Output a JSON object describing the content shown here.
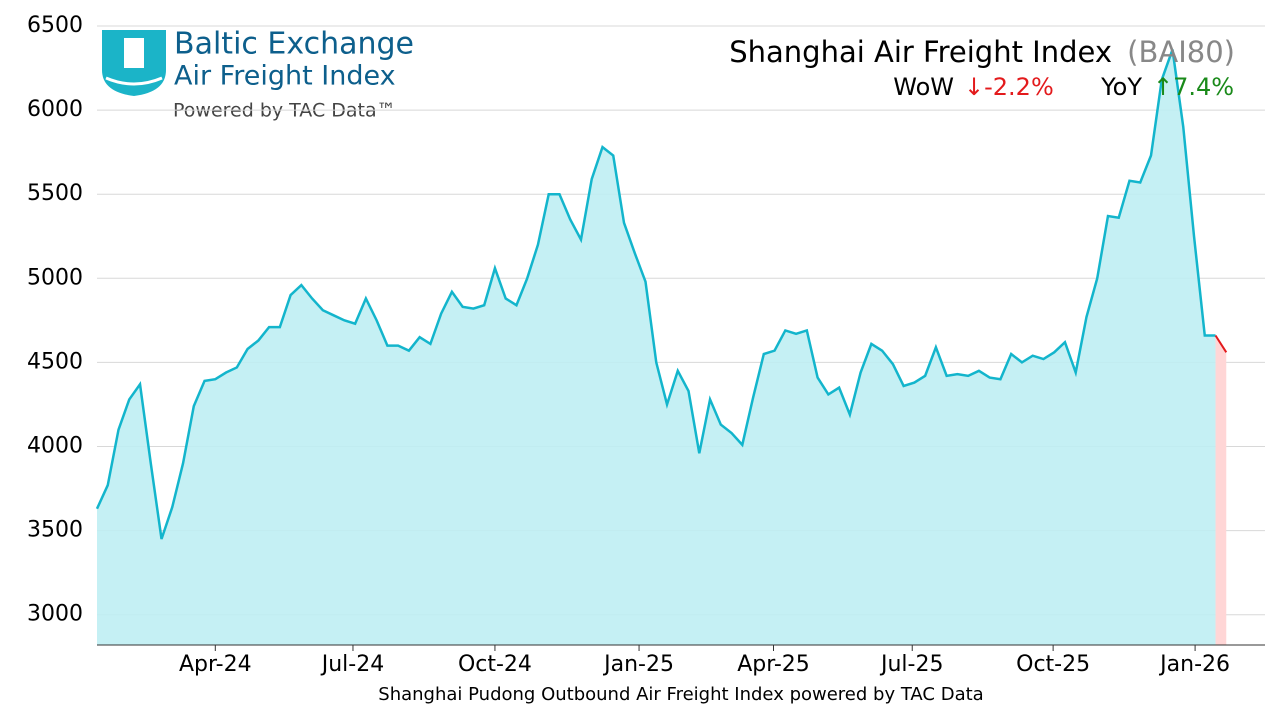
{
  "chart_data": {
    "type": "line",
    "title": "Shanghai Air Freight Index",
    "title_code": "(BAI80)",
    "wow_label": "WoW",
    "wow_value": "↓-2.2%",
    "yoy_label": "YoY",
    "yoy_value": "↑7.4%",
    "logo": {
      "name": "Baltic Exchange",
      "subname": "Air Freight Index",
      "powered": "Powered by TAC Data™"
    },
    "x_label": "Shanghai Pudong Outbound Air Freight Index powered by TAC Data",
    "values": [
      3630,
      3770,
      4100,
      4280,
      4370,
      3900,
      3450,
      3640,
      3900,
      4240,
      4390,
      4400,
      4440,
      4470,
      4580,
      4630,
      4710,
      4710,
      4900,
      4960,
      4880,
      4810,
      4780,
      4750,
      4730,
      4880,
      4750,
      4600,
      4600,
      4570,
      4650,
      4610,
      4790,
      4920,
      4830,
      4820,
      4840,
      5060,
      4880,
      4840,
      5000,
      5200,
      5500,
      5500,
      5350,
      5230,
      5590,
      5780,
      5730,
      5330,
      5150,
      4980,
      4500,
      4250,
      4450,
      4330,
      3960,
      4280,
      4130,
      4080,
      4010,
      4290,
      4550,
      4570,
      4690,
      4670,
      4690,
      4410,
      4310,
      4350,
      4190,
      4440,
      4610,
      4570,
      4490,
      4360,
      4380,
      4420,
      4590,
      4420,
      4430,
      4420,
      4450,
      4410,
      4400,
      4550,
      4500,
      4540,
      4520,
      4560,
      4620,
      4440,
      4770,
      5000,
      5370,
      5360,
      5580,
      5570,
      5730,
      6180,
      6360,
      5900,
      5250,
      4660,
      4660,
      4560
    ],
    "color": "#13b5cc",
    "fill_color": "#bfeef3",
    "last_segment_color": "#e31a1c",
    "last_fill_color": "#ffd6d6",
    "xlim": [
      0,
      108.6
    ],
    "xticks": [
      {
        "value": 11,
        "label": "Apr-24"
      },
      {
        "value": 23.8,
        "label": "Jul-24"
      },
      {
        "value": 37,
        "label": "Oct-24"
      },
      {
        "value": 50.4,
        "label": "Jan-25"
      },
      {
        "value": 62.9,
        "label": "Apr-25"
      },
      {
        "value": 75.8,
        "label": "Jul-25"
      },
      {
        "value": 88.9,
        "label": "Oct-25"
      },
      {
        "value": 102.1,
        "label": "Jan-26"
      }
    ],
    "ylim": [
      2820,
      6500
    ],
    "yticks": [
      3000,
      3500,
      4000,
      4500,
      5000,
      5500,
      6000,
      6500
    ],
    "grid": true
  }
}
